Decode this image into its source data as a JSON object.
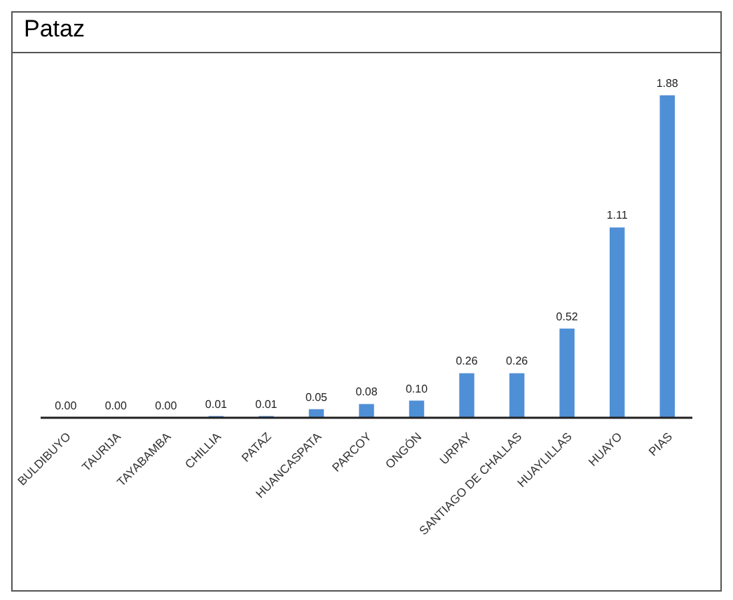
{
  "chart_data": {
    "type": "bar",
    "title": "Pataz",
    "categories": [
      "BULDIBUYO",
      "TAURIJA",
      "TAYABAMBA",
      "CHILLIA",
      "PATAZ",
      "HUANCASPATA",
      "PARCOY",
      "ONGÓN",
      "URPAY",
      "SANTIAGO DE CHALLAS",
      "HUAYLILLAS",
      "HUAYO",
      "PIAS"
    ],
    "values": [
      0.0,
      0.0,
      0.0,
      0.01,
      0.01,
      0.05,
      0.08,
      0.1,
      0.26,
      0.26,
      0.52,
      1.11,
      1.88
    ],
    "value_labels": [
      "0.00",
      "0.00",
      "0.00",
      "0.01",
      "0.01",
      "0.05",
      "0.08",
      "0.10",
      "0.26",
      "0.26",
      "0.52",
      "1.11",
      "1.88"
    ],
    "color": "#4f8fd6",
    "grid": false
  }
}
